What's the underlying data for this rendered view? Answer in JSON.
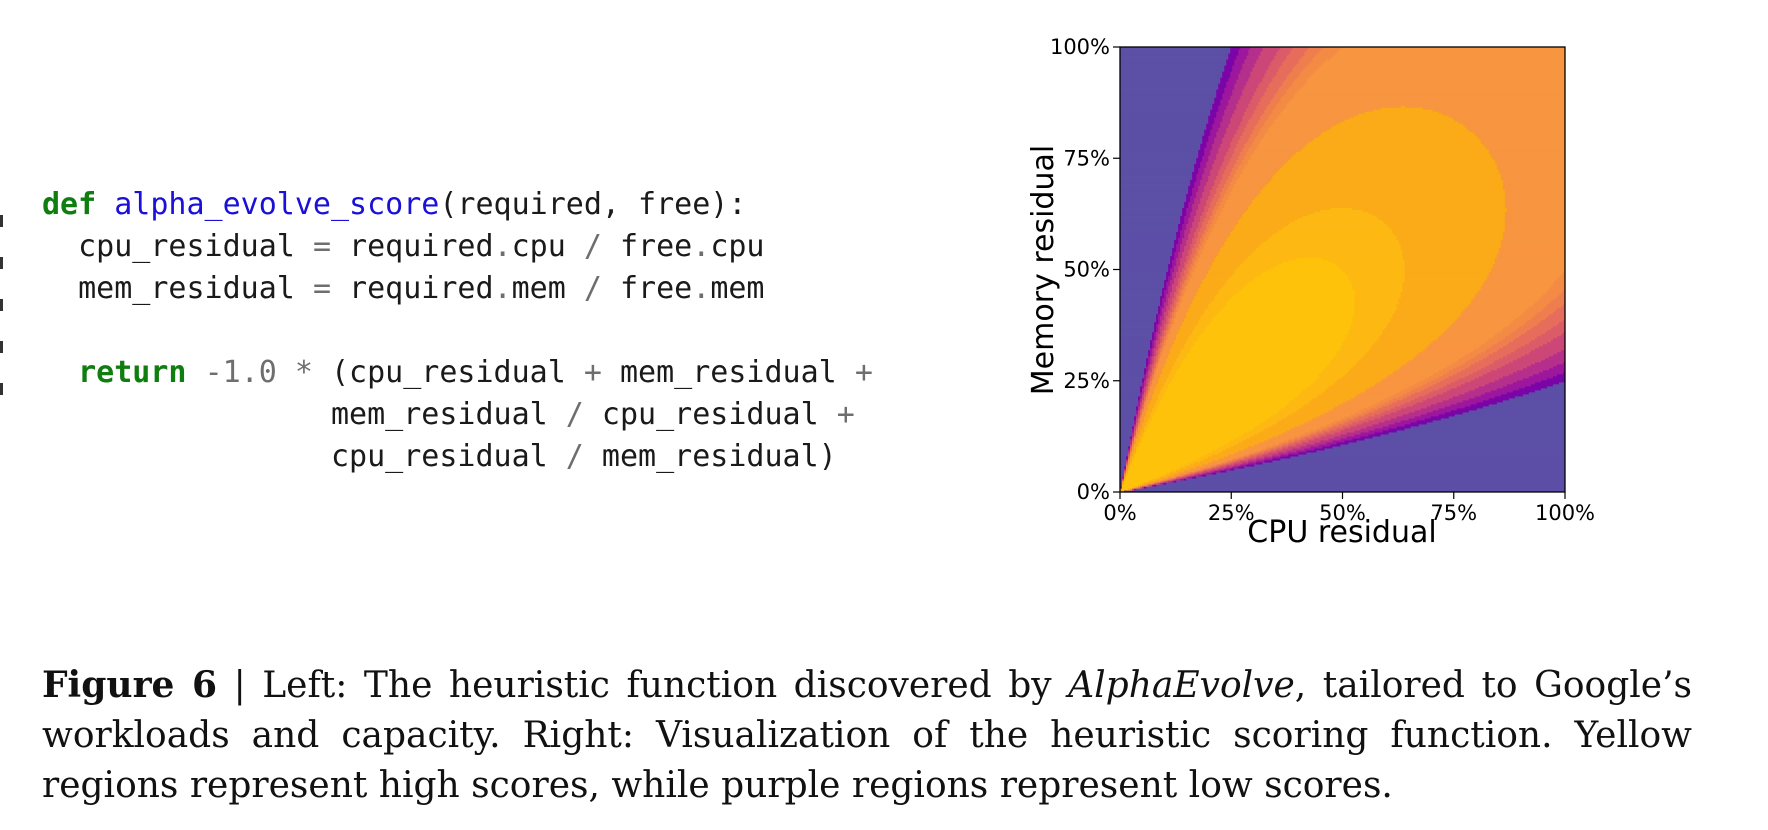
{
  "code": {
    "lines": [
      [
        {
          "t": "def",
          "c": "kw"
        },
        {
          "t": " ",
          "c": ""
        },
        {
          "t": "alpha_evolve_score",
          "c": "fn"
        },
        {
          "t": "(required, free):",
          "c": ""
        }
      ],
      [
        {
          "t": "  cpu_residual ",
          "c": ""
        },
        {
          "t": "=",
          "c": "op"
        },
        {
          "t": " required",
          "c": ""
        },
        {
          "t": ".",
          "c": "op"
        },
        {
          "t": "cpu ",
          "c": ""
        },
        {
          "t": "/",
          "c": "op"
        },
        {
          "t": " free",
          "c": ""
        },
        {
          "t": ".",
          "c": "op"
        },
        {
          "t": "cpu",
          "c": ""
        }
      ],
      [
        {
          "t": "  mem_residual ",
          "c": ""
        },
        {
          "t": "=",
          "c": "op"
        },
        {
          "t": " required",
          "c": ""
        },
        {
          "t": ".",
          "c": "op"
        },
        {
          "t": "mem ",
          "c": ""
        },
        {
          "t": "/",
          "c": "op"
        },
        {
          "t": " free",
          "c": ""
        },
        {
          "t": ".",
          "c": "op"
        },
        {
          "t": "mem",
          "c": ""
        }
      ],
      [],
      [
        {
          "t": "  ",
          "c": ""
        },
        {
          "t": "return",
          "c": "kw"
        },
        {
          "t": " ",
          "c": ""
        },
        {
          "t": "-1.0",
          "c": "num"
        },
        {
          "t": " ",
          "c": ""
        },
        {
          "t": "*",
          "c": "op"
        },
        {
          "t": " (cpu_residual ",
          "c": ""
        },
        {
          "t": "+",
          "c": "op"
        },
        {
          "t": " mem_residual ",
          "c": ""
        },
        {
          "t": "+",
          "c": "op"
        }
      ],
      [
        {
          "t": "                mem_residual ",
          "c": ""
        },
        {
          "t": "/",
          "c": "op"
        },
        {
          "t": " cpu_residual ",
          "c": ""
        },
        {
          "t": "+",
          "c": "op"
        }
      ],
      [
        {
          "t": "                cpu_residual ",
          "c": ""
        },
        {
          "t": "/",
          "c": "op"
        },
        {
          "t": " mem_residual)",
          "c": ""
        }
      ]
    ]
  },
  "chart_data": {
    "type": "heatmap",
    "title": "",
    "xlabel": "CPU residual",
    "ylabel": "Memory residual",
    "xlim": [
      0,
      1
    ],
    "ylim": [
      0,
      1
    ],
    "xticks": [
      "0%",
      "25%",
      "50%",
      "75%",
      "100%"
    ],
    "yticks": [
      "0%",
      "25%",
      "50%",
      "75%",
      "100%"
    ],
    "tick_values": [
      0,
      0.25,
      0.5,
      0.75,
      1
    ],
    "function": "-1.0 * (x + y + y/x + x/y)",
    "colormap": "plasma",
    "colormap_stops": [
      "#0d0887",
      "#5b02a3",
      "#9a179b",
      "#cb4678",
      "#eb7852",
      "#fbb32f",
      "#eff821"
    ],
    "contour_levels": [
      -5.5,
      -5.25,
      -5.0,
      -4.75,
      -4.5,
      -4.35,
      -4.2,
      -4.1,
      -4.0,
      -3.6,
      -3.2,
      -3.0
    ],
    "band_colors": [
      "#5c4fa6",
      "#7a04a8",
      "#9c179e",
      "#b52f8c",
      "#cc4778",
      "#db5c68",
      "#e66c5c",
      "#ef7e4f",
      "#f48b45",
      "#f89540",
      "#fbaa18",
      "#fdb813",
      "#fec20a"
    ],
    "grid": false
  },
  "caption": {
    "label": "Figure 6",
    "separator": " | ",
    "text_before": "Left: The heuristic function discovered by ",
    "emphasis": "AlphaEvolve",
    "text_after": ", tailored to Google’s workloads and capacity. Right: Visualization of the heuristic scoring function. Yellow regions represent high scores, while purple regions represent low scores."
  }
}
